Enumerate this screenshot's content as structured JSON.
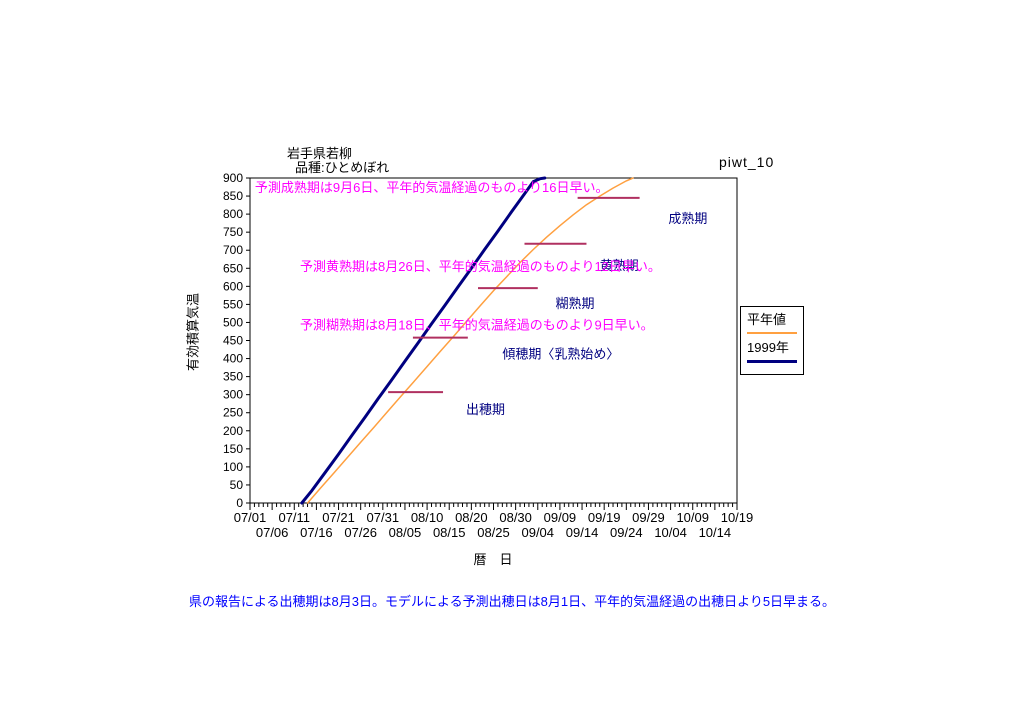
{
  "window": {
    "label": "piwt_10"
  },
  "chart_title": {
    "line1": "岩手県若柳",
    "line2": "品種:ひとめぼれ"
  },
  "y_axis_title": "有効積算気温",
  "x_axis_title": "暦　日",
  "legend": {
    "items": [
      {
        "label": "平年値"
      },
      {
        "label": "1999年"
      }
    ]
  },
  "footnote": "県の報告による出穂期は8月3日。モデルによる予測出穂日は8月1日、平年的気温経過の出穂日より5日早まる。",
  "chart_data": {
    "type": "line",
    "title": "岩手県若柳 品種:ひとめぼれ",
    "xlabel": "暦 日",
    "ylabel": "有効積算気温",
    "ylim": [
      0,
      900
    ],
    "ytick_step": 50,
    "x_range_days": [
      0,
      110
    ],
    "x_start_date": "07/01",
    "x_end_date": "10/19",
    "grid": false,
    "legend_position": "right",
    "x_tick_row1": {
      "days": [
        0,
        10,
        20,
        30,
        40,
        50,
        60,
        70,
        80,
        90,
        100,
        110
      ],
      "labels": [
        "07/01",
        "07/11",
        "07/21",
        "07/31",
        "08/10",
        "08/20",
        "08/30",
        "09/09",
        "09/19",
        "09/29",
        "10/09",
        "10/19"
      ]
    },
    "x_tick_row2": {
      "days": [
        5,
        15,
        25,
        35,
        45,
        55,
        65,
        75,
        85,
        95,
        105
      ],
      "labels": [
        "07/06",
        "07/16",
        "07/26",
        "08/05",
        "08/15",
        "08/25",
        "09/04",
        "09/14",
        "09/24",
        "10/04",
        "10/14"
      ]
    },
    "series": [
      {
        "name": "平年値",
        "color": "#FFA040",
        "width": 1.5,
        "points": [
          [
            13,
            0
          ],
          [
            16,
            42
          ],
          [
            19,
            84
          ],
          [
            22,
            126
          ],
          [
            25,
            168
          ],
          [
            28,
            210
          ],
          [
            31,
            252
          ],
          [
            34,
            294
          ],
          [
            37,
            336
          ],
          [
            40,
            378
          ],
          [
            43,
            420
          ],
          [
            46,
            462
          ],
          [
            49,
            504
          ],
          [
            52,
            546
          ],
          [
            55,
            588
          ],
          [
            58,
            627
          ],
          [
            61,
            666
          ],
          [
            64,
            702
          ],
          [
            67,
            736
          ],
          [
            70,
            768
          ],
          [
            73,
            798
          ],
          [
            76,
            826
          ],
          [
            79,
            850
          ],
          [
            82,
            872
          ],
          [
            85,
            892
          ],
          [
            86.5,
            900
          ]
        ]
      },
      {
        "name": "1999年",
        "color": "#000080",
        "width": 3,
        "points": [
          [
            11.7,
            0
          ],
          [
            14,
            35
          ],
          [
            17,
            85
          ],
          [
            20,
            135
          ],
          [
            23,
            187
          ],
          [
            26,
            238
          ],
          [
            29,
            290
          ],
          [
            32,
            341
          ],
          [
            35,
            393
          ],
          [
            38,
            444
          ],
          [
            41,
            496
          ],
          [
            44,
            547
          ],
          [
            47,
            599
          ],
          [
            50,
            650
          ],
          [
            53,
            702
          ],
          [
            56,
            753
          ],
          [
            59,
            805
          ],
          [
            62,
            856
          ],
          [
            64,
            890
          ],
          [
            65.5,
            898
          ],
          [
            66.6,
            900
          ]
        ]
      }
    ],
    "segment_color": "#B03060",
    "stage_label_color": "#000080",
    "stage_segments": [
      {
        "name": "成熟期",
        "value": 845,
        "day_from": 74,
        "day_to": 88,
        "label_day": 94.5,
        "label_value": 775
      },
      {
        "name": "黄熟期",
        "value": 718,
        "day_from": 62,
        "day_to": 76,
        "label_day": 79,
        "label_value": 645
      },
      {
        "name": "糊熟期",
        "value": 595,
        "day_from": 51.5,
        "day_to": 65,
        "label_day": 69,
        "label_value": 540
      },
      {
        "name": "傾穂期〈乳熟始め〉",
        "value": 458,
        "day_from": 36.8,
        "day_to": 49.2,
        "label_day": 57,
        "label_value": 400
      },
      {
        "name": "出穂期",
        "value": 307,
        "day_from": 31.2,
        "day_to": 43.6,
        "label_day": 48.8,
        "label_value": 246
      }
    ],
    "annotations": [
      {
        "text": "予測成熟期は9月6日、平年的気温経過のものより16日早い。",
        "day": 1.1,
        "value": 861,
        "color": "#FF00FF"
      },
      {
        "text": "予測黄熟期は8月26日、平年的気温経過のものより12日早い。",
        "day": 11.3,
        "value": 642,
        "color": "#FF00FF"
      },
      {
        "text": "予測糊熟期は8月18日、平年的気温経過のものより9日早い。",
        "day": 11.3,
        "value": 480,
        "color": "#FF00FF"
      }
    ]
  }
}
